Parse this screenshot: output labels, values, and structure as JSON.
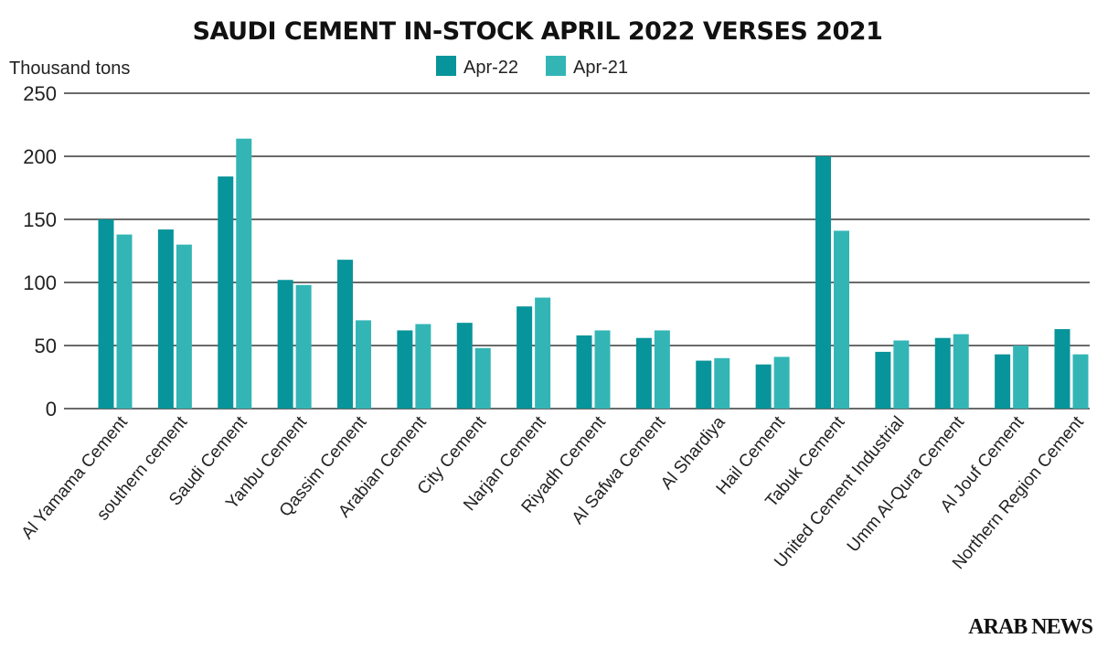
{
  "colors": {
    "apr22": "#07949a",
    "apr21": "#33b5b6",
    "grid": "#111111"
  },
  "logo": "ARAB NEWS",
  "chart_data": {
    "type": "bar",
    "title": "SAUDI CEMENT IN-STOCK APRIL 2022 VERSES 2021",
    "ylabel": "Thousand tons",
    "xlabel": "",
    "ylim": [
      0,
      250
    ],
    "yticks": [
      0,
      50,
      100,
      150,
      200,
      250
    ],
    "grid": true,
    "legend_position": "top-center",
    "categories": [
      "Al Yamama Cement",
      "southern cement",
      "Saudi  Cement",
      "Yanbu Cement",
      "Qassim Cement",
      "Arabian Cement",
      "City Cement",
      "Narjan Cement",
      "Riyadh Cement",
      "Al Safwa  Cement",
      "Al Shardiya",
      "Hail Cement",
      "Tabuk Cement",
      "United Cement Industrial",
      "Umm Al-Qura Cement",
      "Al Jouf Cement",
      "Northern Region Cement"
    ],
    "series": [
      {
        "name": "Apr-22",
        "values": [
          150,
          142,
          184,
          102,
          118,
          62,
          68,
          81,
          58,
          56,
          38,
          35,
          200,
          45,
          56,
          43,
          63
        ]
      },
      {
        "name": "Apr-21",
        "values": [
          138,
          130,
          214,
          98,
          70,
          67,
          48,
          88,
          62,
          62,
          40,
          41,
          141,
          54,
          59,
          50,
          43
        ]
      }
    ]
  }
}
